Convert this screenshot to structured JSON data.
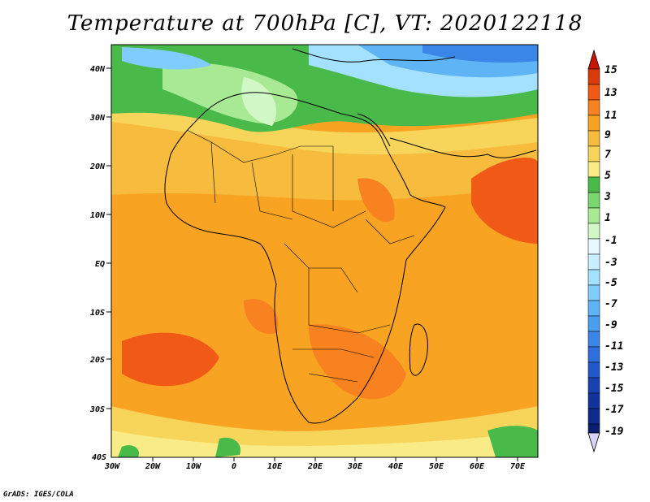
{
  "title": "Temperature at 700hPa [C], VT: 2020122118",
  "map": {
    "lat_labels": [
      "40N",
      "30N",
      "20N",
      "10N",
      "EQ",
      "10S",
      "20S",
      "30S",
      "40S"
    ],
    "lon_labels": [
      "30W",
      "20W",
      "10W",
      "0",
      "10E",
      "20E",
      "30E",
      "40E",
      "50E",
      "60E",
      "70E"
    ]
  },
  "colorbar": {
    "labels": [
      "15",
      "13",
      "11",
      "9",
      "7",
      "5",
      "3",
      "1",
      "-1",
      "-3",
      "-5",
      "-7",
      "-9",
      "-11",
      "-13",
      "-15",
      "-17",
      "-19"
    ],
    "colors": [
      "#e8f8ff",
      "#c8eeff",
      "#a4e0ff",
      "#80ccff",
      "#5fb4f5",
      "#4a9ef0",
      "#3a86e6",
      "#2e6fdc",
      "#2258cc",
      "#0f2a8c"
    ],
    "warm_colors": [
      "#d83a0a",
      "#f05a16",
      "#f7821f",
      "#f9a323",
      "#f7bb3e",
      "#f7d55a",
      "#f9ec86",
      "#49b94a",
      "#7ad66e",
      "#a8ea94",
      "#d2f7c6"
    ]
  },
  "credit": "GrADS: IGES/COLA"
}
